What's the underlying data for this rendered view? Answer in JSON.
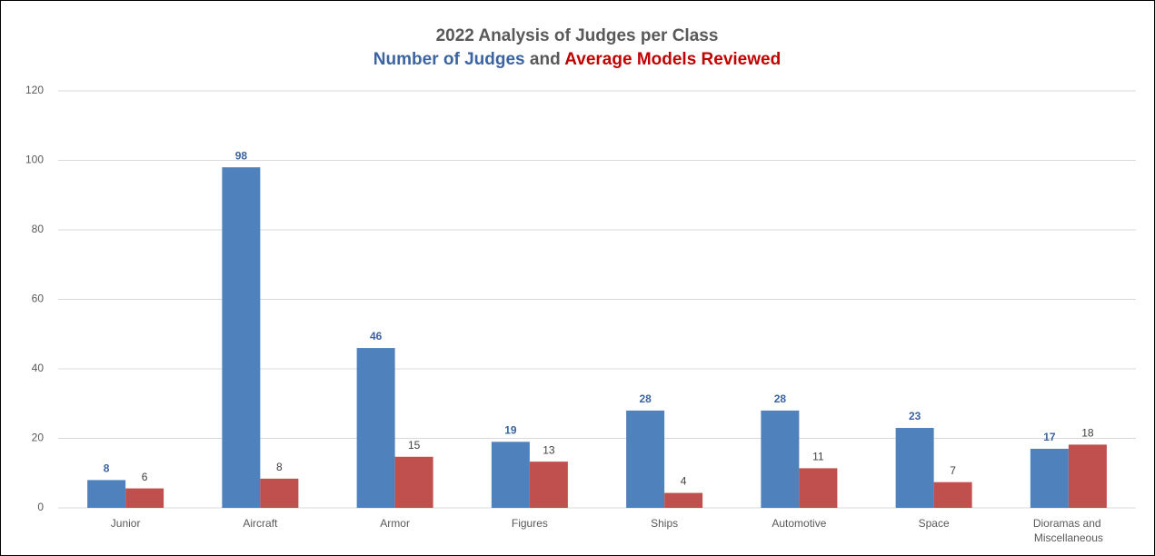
{
  "chart_data": {
    "type": "bar",
    "title": "2022 Analysis of Judges per Class",
    "subtitle_connector": "and",
    "categories": [
      "Junior",
      "Aircraft",
      "Armor",
      "Figures",
      "Ships",
      "Automotive",
      "Space",
      "Dioramas and Miscellaneous"
    ],
    "series": [
      {
        "name": "Number of Judges",
        "color": "#4f81bd",
        "values": [
          8,
          98,
          46,
          19,
          28,
          28,
          23,
          17
        ]
      },
      {
        "name": "Average Models Reviewed",
        "color": "#c0504d",
        "values": [
          5.6,
          8.4,
          14.7,
          13.3,
          4.3,
          11.4,
          7.4,
          18.2
        ],
        "value_labels": [
          "6",
          "8",
          "15",
          "13",
          "4",
          "11",
          "7",
          "18"
        ]
      }
    ],
    "ylim": [
      0,
      120
    ],
    "yticks": [
      0,
      20,
      40,
      60,
      80,
      100,
      120
    ],
    "grid": true
  }
}
